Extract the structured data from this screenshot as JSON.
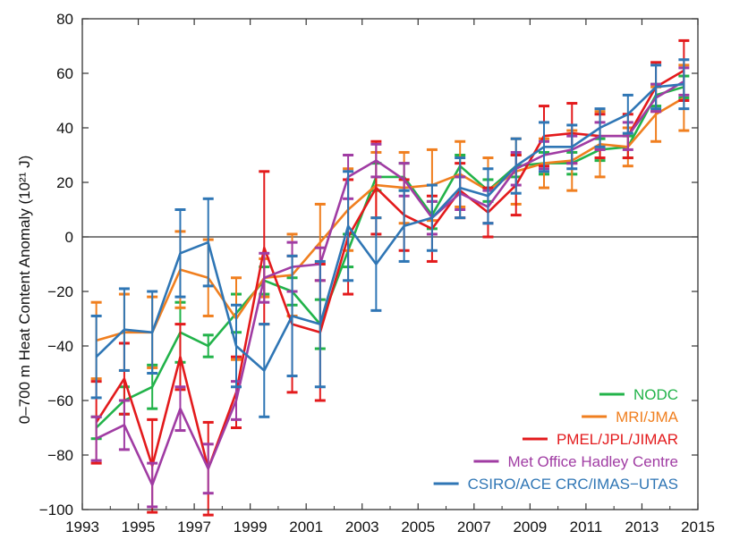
{
  "chart_data": {
    "type": "line",
    "title": "",
    "xlabel": "",
    "ylabel": "0–700 m Heat Content Anomaly (10²¹ J)",
    "xlim": [
      1993,
      2015
    ],
    "ylim": [
      -100,
      80
    ],
    "x_ticks": [
      1993,
      1995,
      1997,
      1999,
      2001,
      2003,
      2005,
      2007,
      2009,
      2011,
      2013,
      2015
    ],
    "y_ticks": [
      -100,
      -80,
      -60,
      -40,
      -20,
      0,
      20,
      40,
      60,
      80
    ],
    "grid": false,
    "legend_position": "bottom-right",
    "x": [
      1993.5,
      1994.5,
      1995.5,
      1996.5,
      1997.5,
      1998.5,
      1999.5,
      2000.5,
      2001.5,
      2002.5,
      2003.5,
      2004.5,
      2005.5,
      2006.5,
      2007.5,
      2008.5,
      2009.5,
      2010.5,
      2011.5,
      2012.5,
      2013.5,
      2014.5
    ],
    "series": [
      {
        "name": "NODC",
        "color": "#22b34a",
        "values": [
          -70,
          -60,
          -55,
          -35,
          -40,
          -28,
          -16,
          -20,
          -32,
          -5,
          22,
          22,
          8,
          26,
          17,
          26,
          27,
          27,
          32,
          33,
          52,
          55
        ],
        "err": [
          4,
          5,
          8,
          11,
          4,
          7,
          5,
          5,
          9,
          6,
          5,
          5,
          5,
          4,
          4,
          4,
          4,
          4,
          4,
          4,
          4,
          4
        ]
      },
      {
        "name": "MRI/JMA",
        "color": "#f07f1f",
        "values": [
          -38,
          -35,
          -35,
          -12,
          -15,
          -30,
          -15,
          -14,
          -2,
          10,
          19,
          18,
          19,
          23,
          17,
          24,
          27,
          28,
          34,
          33,
          45,
          51
        ],
        "err": [
          14,
          14,
          13,
          14,
          14,
          15,
          7,
          15,
          14,
          15,
          12,
          13,
          13,
          12,
          12,
          12,
          9,
          11,
          12,
          7,
          10,
          12
        ]
      },
      {
        "name": "PMEL/JPL/JIMAR",
        "color": "#e31a1c",
        "values": [
          -68,
          -52,
          -84,
          -44,
          -85,
          -57,
          -4,
          -32,
          -35,
          0,
          18,
          8,
          3,
          17,
          9,
          19,
          37,
          38,
          37,
          37,
          55,
          61
        ],
        "err": [
          15,
          13,
          17,
          12,
          17,
          13,
          28,
          25,
          25,
          21,
          17,
          13,
          12,
          10,
          9,
          11,
          11,
          11,
          8,
          8,
          9,
          11
        ]
      },
      {
        "name": "Met Office Hadley Centre",
        "color": "#a03ca3",
        "values": [
          -74,
          -69,
          -91,
          -63,
          -85,
          -60,
          -15,
          -11,
          -10,
          22,
          28,
          21,
          7,
          16,
          11,
          25,
          30,
          32,
          37,
          37,
          51,
          57
        ],
        "err": [
          8,
          9,
          8,
          8,
          9,
          7,
          9,
          9,
          6,
          8,
          6,
          6,
          6,
          6,
          6,
          6,
          5,
          5,
          5,
          5,
          5,
          5
        ]
      },
      {
        "name": "CSIRO/ACE CRC/IMAS−UTAS",
        "color": "#2f76b5",
        "values": [
          -44,
          -34,
          -35,
          -6,
          -2,
          -40,
          -49,
          -29,
          -32,
          4,
          -10,
          4,
          7,
          18,
          15,
          26,
          33,
          33,
          40,
          45,
          55,
          56
        ],
        "err": [
          15,
          15,
          15,
          16,
          16,
          15,
          17,
          22,
          23,
          20,
          17,
          13,
          12,
          11,
          10,
          10,
          9,
          8,
          7,
          7,
          8,
          9
        ]
      }
    ]
  }
}
